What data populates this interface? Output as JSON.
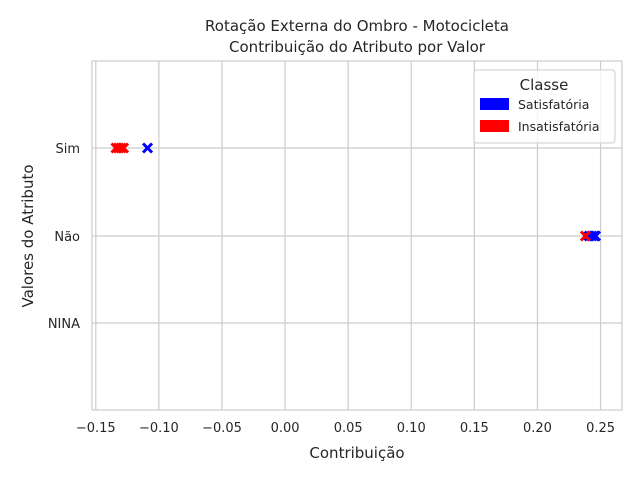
{
  "chart_data": {
    "type": "scatter",
    "title_lines": [
      "Rotação Externa do Ombro - Motocicleta",
      "Contribuição do Atributo por Valor"
    ],
    "xlabel": "Contribuição",
    "ylabel": "Valores do Atributo",
    "xlim": [
      -0.153,
      0.267
    ],
    "x_ticks": [
      -0.15,
      -0.1,
      -0.05,
      0.0,
      0.05,
      0.1,
      0.15,
      0.2,
      0.25
    ],
    "x_tick_labels": [
      "−0.15",
      "−0.10",
      "−0.05",
      "0.00",
      "0.05",
      "0.10",
      "0.15",
      "0.20",
      "0.25"
    ],
    "categories": [
      "Sim",
      "Não",
      "NINA"
    ],
    "grid": true,
    "legend": {
      "title": "Classe",
      "position": "top-right",
      "entries": [
        {
          "label": "Satisfatória",
          "color": "#0000ff"
        },
        {
          "label": "Insatisfatória",
          "color": "#ff0000"
        }
      ]
    },
    "series": [
      {
        "name": "Satisfatória",
        "color": "#0000ff",
        "points": [
          {
            "x": -0.109,
            "category": "Sim"
          },
          {
            "x": 0.241,
            "category": "Não"
          },
          {
            "x": 0.243,
            "category": "Não"
          },
          {
            "x": 0.245,
            "category": "Não"
          },
          {
            "x": 0.246,
            "category": "Não"
          }
        ]
      },
      {
        "name": "Insatisfatória",
        "color": "#ff0000",
        "points": [
          {
            "x": -0.134,
            "category": "Sim"
          },
          {
            "x": -0.132,
            "category": "Sim"
          },
          {
            "x": -0.13,
            "category": "Sim"
          },
          {
            "x": -0.128,
            "category": "Sim"
          },
          {
            "x": 0.238,
            "category": "Não"
          }
        ]
      }
    ]
  }
}
